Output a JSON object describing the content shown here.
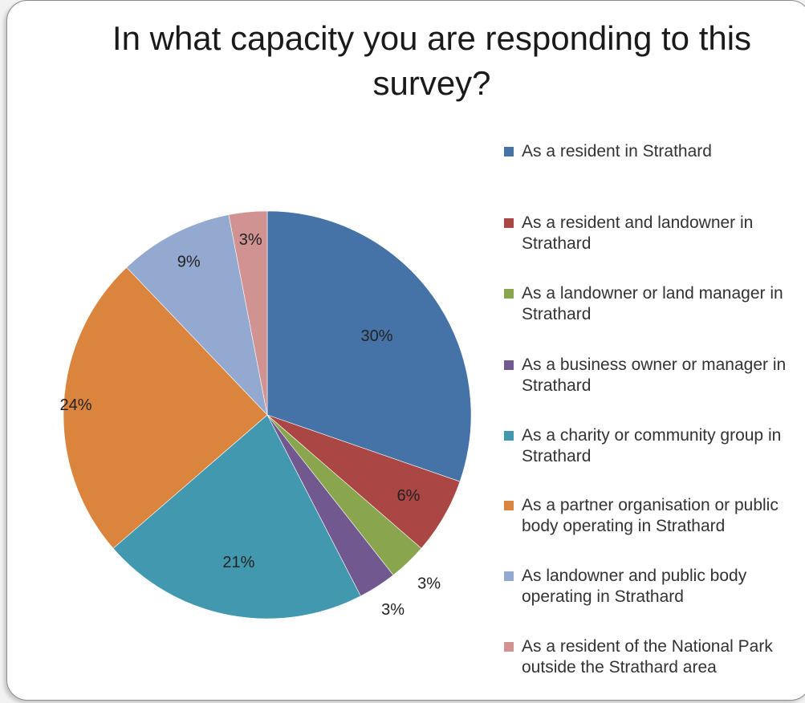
{
  "chart_data": {
    "type": "pie",
    "title": "In what capacity you are responding to this survey?",
    "legend_position": "right",
    "slices": [
      {
        "label": "As a resident in Strathard",
        "value": 30,
        "display": "30%",
        "color": "#4572A7"
      },
      {
        "label": "As a resident and landowner in Strathard",
        "value": 6,
        "display": "6%",
        "color": "#AA4643"
      },
      {
        "label": "As a landowner or land manager in Strathard",
        "value": 3,
        "display": "3%",
        "color": "#89A54E"
      },
      {
        "label": "As a business owner or manager in Strathard",
        "value": 3,
        "display": "3%",
        "color": "#71588F"
      },
      {
        "label": "As a charity or community group in Strathard",
        "value": 21,
        "display": "21%",
        "color": "#4198AF"
      },
      {
        "label": "As a partner organisation or public body operating in Strathard",
        "value": 24,
        "display": "24%",
        "color": "#DB843D"
      },
      {
        "label": "As landowner and public body operating in Strathard",
        "value": 9,
        "display": "9%",
        "color": "#93A9CF"
      },
      {
        "label": "As a resident of the National Park outside the Strathard area",
        "value": 3,
        "display": "3%",
        "color": "#D19392"
      }
    ]
  }
}
